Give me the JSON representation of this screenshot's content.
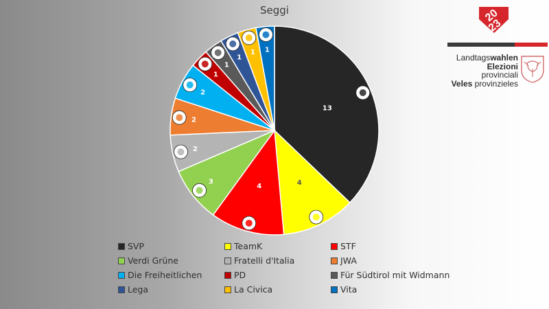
{
  "chart_data": {
    "type": "pie",
    "title": "Seggi",
    "start_angle_deg": 0,
    "direction": "clockwise",
    "slices": [
      {
        "label": "SVP",
        "value": 13,
        "color": "#262626",
        "label_color": "#ffffff",
        "logo": "svp-eagle-logo-icon"
      },
      {
        "label": "TeamK",
        "value": 4,
        "color": "#ffff00",
        "label_color": "#555555",
        "logo": "team-k-logo-icon"
      },
      {
        "label": "STF",
        "value": 4,
        "color": "#ff0000",
        "label_color": "#ffffff",
        "logo": "stf-logo-icon"
      },
      {
        "label": "Verdi Grüne",
        "value": 3,
        "color": "#92d050",
        "label_color": "#ffffff",
        "logo": "verdi-dove-logo-icon"
      },
      {
        "label": "Fratelli d'Italia",
        "value": 2,
        "color": "#b4b4b4",
        "label_color": "#ffffff",
        "logo": "fdi-meloni-logo-icon"
      },
      {
        "label": "JWA",
        "value": 2,
        "color": "#ed7d31",
        "label_color": "#ffffff",
        "logo": "jwa-logo-icon"
      },
      {
        "label": "Die Freiheitlichen",
        "value": 2,
        "color": "#00b0f0",
        "label_color": "#ffffff",
        "logo": "freiheitlichen-logo-icon"
      },
      {
        "label": "PD",
        "value": 1,
        "color": "#c00000",
        "label_color": "#ffffff",
        "logo": "pd-logo-icon"
      },
      {
        "label": "Für Südtirol mit Widmann",
        "value": 1,
        "color": "#595959",
        "label_color": "#ffffff",
        "logo": "widmann-logo-icon"
      },
      {
        "label": "Lega",
        "value": 1,
        "color": "#2f5597",
        "label_color": "#ffffff",
        "logo": "lega-logo-icon"
      },
      {
        "label": "La Civica",
        "value": 1,
        "color": "#ffc000",
        "label_color": "#ffffff",
        "logo": "la-civica-logo-icon"
      },
      {
        "label": "Vita",
        "value": 1,
        "color": "#0070c0",
        "label_color": "#ffffff",
        "logo": "vita-logo-icon"
      }
    ],
    "legend_placement": "bottom"
  },
  "logo": {
    "year_top": "20",
    "year_bottom": "23",
    "line1_regular": "Landtags",
    "line1_bold": "wahlen",
    "line2_bold": "Elezioni",
    "line2_regular": " provinciali",
    "line3_bold": "Veles",
    "line3_regular": " provinzieles",
    "icon": "south-tyrol-eagle-coat-of-arms-icon",
    "accent_color": "#d6262b"
  }
}
